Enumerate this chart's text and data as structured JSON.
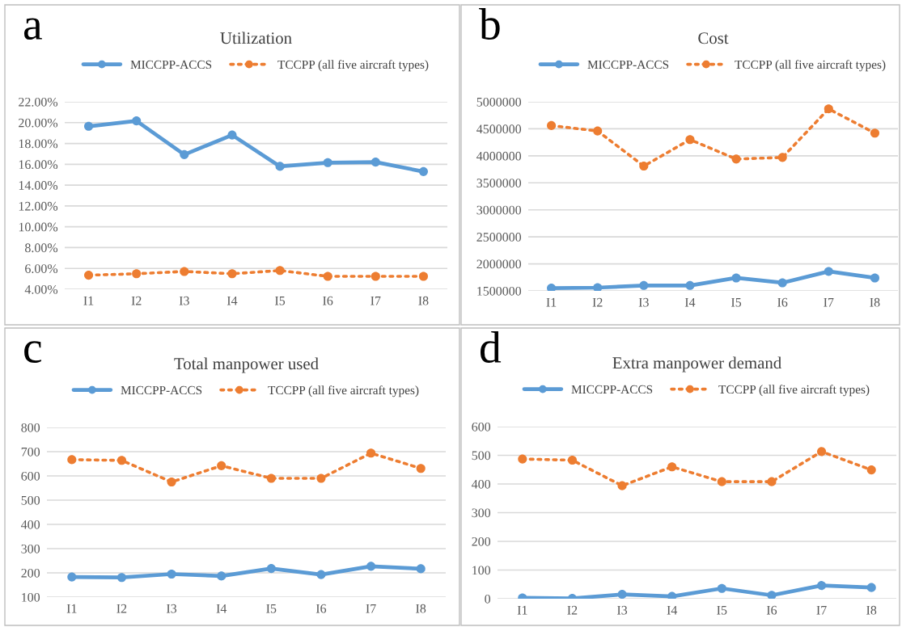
{
  "chart_data": [
    {
      "type": "line",
      "title": "Utilization",
      "annotations": [
        "a"
      ],
      "categories": [
        "I1",
        "I2",
        "I3",
        "I4",
        "I5",
        "I6",
        "I7",
        "I8"
      ],
      "series": [
        {
          "name": "MICCPP-ACCS",
          "color": "#5b9bd5",
          "line_style": "solid",
          "values": [
            19.65,
            20.17,
            16.93,
            18.81,
            15.8,
            16.16,
            16.21,
            15.3
          ]
        },
        {
          "name": "TCCPP (all five aircraft types)",
          "color": "#ed7d31",
          "line_style": "dotted",
          "values": [
            5.35,
            5.49,
            5.71,
            5.49,
            5.8,
            5.24,
            5.24,
            5.24
          ]
        }
      ],
      "ylim": [
        4,
        22
      ],
      "yticks": [
        {
          "value": 4,
          "label": "4.00%"
        },
        {
          "value": 6,
          "label": "6.00%"
        },
        {
          "value": 8,
          "label": "8.00%"
        },
        {
          "value": 10,
          "label": "10.00%"
        },
        {
          "value": 12,
          "label": "12.00%"
        },
        {
          "value": 14,
          "label": "14.00%"
        },
        {
          "value": 16,
          "label": "16.00%"
        },
        {
          "value": 18,
          "label": "18.00%"
        },
        {
          "value": 20,
          "label": "20.00%"
        },
        {
          "value": 22,
          "label": "22.00%"
        }
      ],
      "grid": "y",
      "legend": "top",
      "marker": "circle"
    },
    {
      "type": "line",
      "title": "Cost",
      "annotations": [
        "b"
      ],
      "categories": [
        "I1",
        "I2",
        "I3",
        "I4",
        "I5",
        "I6",
        "I7",
        "I8"
      ],
      "series": [
        {
          "name": "MICCPP-ACCS",
          "color": "#5b9bd5",
          "line_style": "solid",
          "values": [
            1550000,
            1560000,
            1600000,
            1600000,
            1740000,
            1650000,
            1860000,
            1740000
          ]
        },
        {
          "name": "TCCPP (all five aircraft types)",
          "color": "#ed7d31",
          "line_style": "dotted",
          "values": [
            4560000,
            4460000,
            3810000,
            4300000,
            3940000,
            3970000,
            4870000,
            4420000
          ]
        }
      ],
      "ylim": [
        1500000,
        5000000
      ],
      "yticks": [
        1500000,
        2000000,
        2500000,
        3000000,
        3500000,
        4000000,
        4500000,
        5000000
      ],
      "grid": "y",
      "legend": "top",
      "marker": "circle"
    },
    {
      "type": "line",
      "title": "Total manpower used",
      "annotations": [
        "c"
      ],
      "categories": [
        "I1",
        "I2",
        "I3",
        "I4",
        "I5",
        "I6",
        "I7",
        "I8"
      ],
      "series": [
        {
          "name": "MICCPP-ACCS",
          "color": "#5b9bd5",
          "line_style": "solid",
          "values": [
            183,
            181,
            195,
            187,
            218,
            193,
            227,
            217
          ]
        },
        {
          "name": "TCCPP (all five aircraft types)",
          "color": "#ed7d31",
          "line_style": "dotted",
          "values": [
            667,
            664,
            575,
            642,
            590,
            590,
            694,
            631
          ]
        }
      ],
      "ylim": [
        100,
        800
      ],
      "yticks": [
        100,
        200,
        300,
        400,
        500,
        600,
        700,
        800
      ],
      "grid": "y",
      "legend": "top",
      "marker": "circle"
    },
    {
      "type": "line",
      "title": "Extra manpower demand",
      "annotations": [
        "d"
      ],
      "categories": [
        "I1",
        "I2",
        "I3",
        "I4",
        "I5",
        "I6",
        "I7",
        "I8"
      ],
      "series": [
        {
          "name": "MICCPP-ACCS",
          "color": "#5b9bd5",
          "line_style": "solid",
          "values": [
            3,
            1,
            15,
            8,
            36,
            12,
            46,
            39
          ]
        },
        {
          "name": "TCCPP (all five aircraft types)",
          "color": "#ed7d31",
          "line_style": "dotted",
          "values": [
            487,
            483,
            394,
            460,
            408,
            408,
            513,
            449
          ]
        }
      ],
      "ylim": [
        0,
        600
      ],
      "yticks": [
        0,
        100,
        200,
        300,
        400,
        500,
        600
      ],
      "grid": "y",
      "legend": "top",
      "marker": "circle"
    }
  ]
}
